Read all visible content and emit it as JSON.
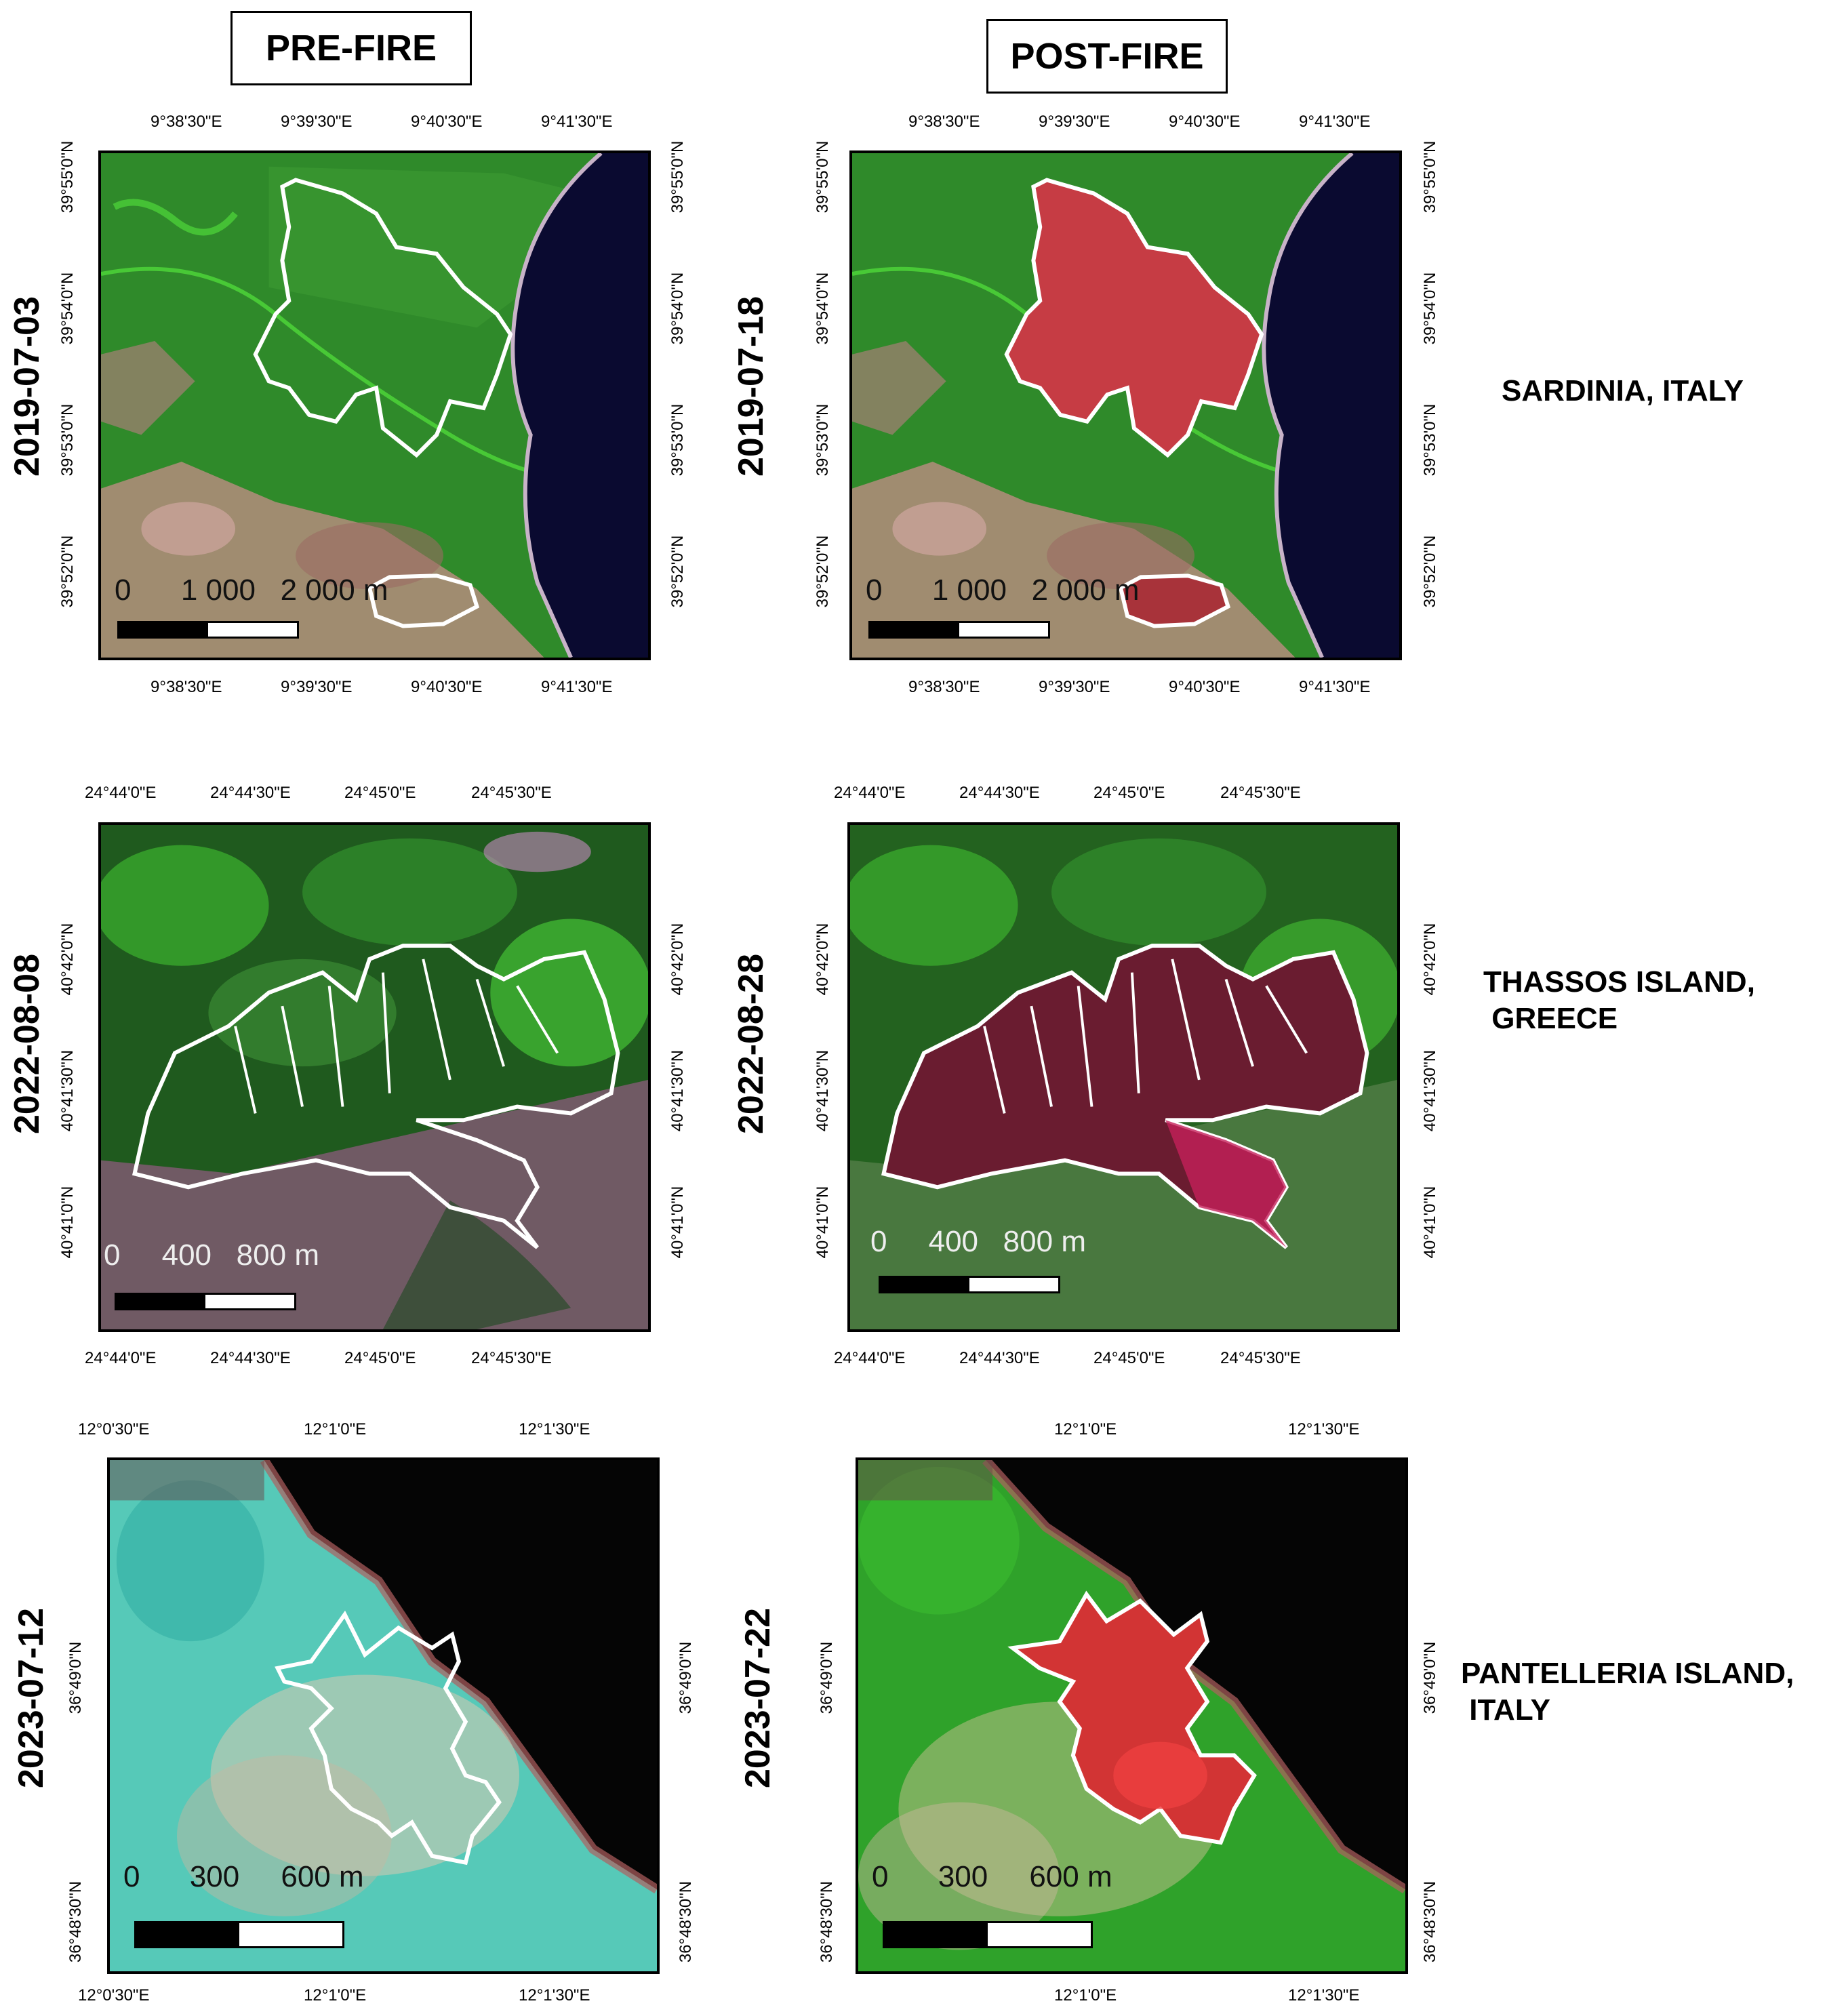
{
  "headers": {
    "pre": "PRE-FIRE",
    "post": "POST-FIRE"
  },
  "rows": [
    {
      "region": [
        "SARDINIA, ITALY"
      ],
      "pre_date": "2019-07-03",
      "post_date": "2019-07-18",
      "lon_labels": [
        "9°38'30\"E",
        "9°39'30\"E",
        "9°40'30\"E",
        "9°41'30\"E"
      ],
      "lat_labels": [
        "39°55'0\"N",
        "39°54'0\"N",
        "39°53'0\"N",
        "39°52'0\"N"
      ],
      "scale": {
        "text": "0      1 000   2 000 m"
      }
    },
    {
      "region": [
        "THASSOS  ISLAND,",
        " GREECE"
      ],
      "pre_date": "2022-08-08",
      "post_date": "2022-08-28",
      "lon_labels": [
        "24°44'0\"E",
        "24°44'30\"E",
        "24°45'0\"E",
        "24°45'30\"E"
      ],
      "lat_labels": [
        "40°42'0\"N",
        "40°41'30\"N",
        "40°41'0\"N"
      ],
      "scale": {
        "text": "0     400   800 m"
      }
    },
    {
      "region": [
        "PANTELLERIA ISLAND,",
        " ITALY"
      ],
      "pre_date": "2023-07-12",
      "post_date": "2023-07-22",
      "pre_lon_top": [
        "12°0'30\"E",
        "12°1'0\"E",
        "12°1'30\"E"
      ],
      "pre_lon_bottom": [
        "12°0'30\"E",
        "12°1'0\"E",
        "12°1'30\"E"
      ],
      "post_lon": [
        "12°1'0\"E",
        "12°1'30\"E"
      ],
      "lat_labels": [
        "36°49'0\"N",
        "36°48'30\"N"
      ],
      "scale": {
        "text": "0      300     600 m"
      }
    }
  ],
  "colors": {
    "vegetation": "#2f8a2a",
    "vegetation_bright": "#4fd83a",
    "soil": "#c7a29a",
    "sea": "#0a0a30",
    "burn_sardinia": "#c63c44",
    "burn_thassos": "#6a1c30",
    "burn_pantelleria": "#d23434",
    "pantelleria_pre": "#56c9b8",
    "perimeter": "#ffffff"
  }
}
